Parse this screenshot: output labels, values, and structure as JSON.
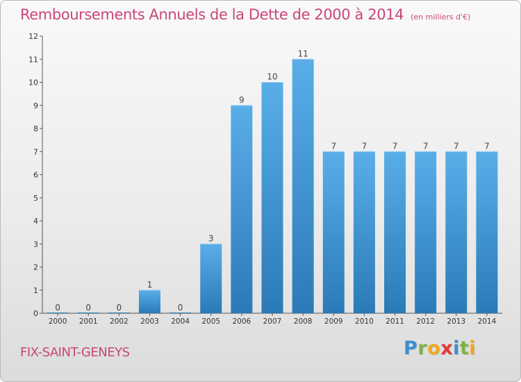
{
  "header": {
    "title": "Remboursements Annuels de la Dette de 2000 à 2014",
    "unit": "(en milliers d'€)"
  },
  "footer": {
    "commune": "FIX-SAINT-GENEYS",
    "logo_letters": [
      "P",
      "r",
      "o",
      "x",
      "i",
      "t",
      "i"
    ],
    "logo_colors": [
      "#3b8fd4",
      "#7cb342",
      "#f2a71b",
      "#e53935",
      "#3b8fd4",
      "#7cb342",
      "#f2a71b"
    ]
  },
  "colors": {
    "title": "#c8467a",
    "bar_top": "#5aaee8",
    "bar_bottom": "#2a7ab8",
    "axis": "#555555"
  },
  "chart_data": {
    "type": "bar",
    "title": "Remboursements Annuels de la Dette de 2000 à 2014",
    "subtitle": "(en milliers d'€)",
    "categories": [
      "2000",
      "2001",
      "2002",
      "2003",
      "2004",
      "2005",
      "2006",
      "2007",
      "2008",
      "2009",
      "2010",
      "2011",
      "2012",
      "2013",
      "2014"
    ],
    "values": [
      0,
      0,
      0,
      1,
      0,
      3,
      9,
      10,
      11,
      7,
      7,
      7,
      7,
      7,
      7
    ],
    "data_labels": [
      "0",
      "0",
      "0",
      "1",
      "0",
      "3",
      "9",
      "10",
      "11",
      "7",
      "7",
      "7",
      "7",
      "7",
      "7"
    ],
    "y_ticks": [
      0,
      1,
      2,
      3,
      4,
      5,
      6,
      7,
      8,
      9,
      10,
      11,
      12
    ],
    "ylim": [
      0,
      12
    ],
    "xlabel": "",
    "ylabel": "",
    "grid": false,
    "legend": "none"
  }
}
